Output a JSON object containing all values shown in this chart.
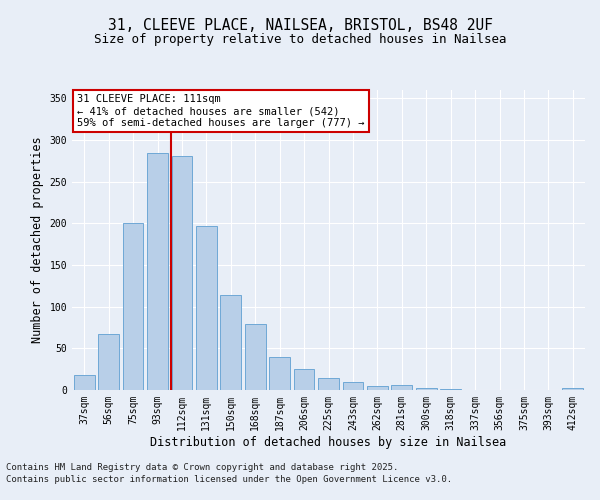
{
  "title_line1": "31, CLEEVE PLACE, NAILSEA, BRISTOL, BS48 2UF",
  "title_line2": "Size of property relative to detached houses in Nailsea",
  "xlabel": "Distribution of detached houses by size in Nailsea",
  "ylabel": "Number of detached properties",
  "categories": [
    "37sqm",
    "56sqm",
    "75sqm",
    "93sqm",
    "112sqm",
    "131sqm",
    "150sqm",
    "168sqm",
    "187sqm",
    "206sqm",
    "225sqm",
    "243sqm",
    "262sqm",
    "281sqm",
    "300sqm",
    "318sqm",
    "337sqm",
    "356sqm",
    "375sqm",
    "393sqm",
    "412sqm"
  ],
  "values": [
    18,
    67,
    200,
    284,
    281,
    197,
    114,
    79,
    40,
    25,
    15,
    10,
    5,
    6,
    3,
    1,
    0,
    0,
    0,
    0,
    2
  ],
  "bar_color": "#b8cfe8",
  "bar_edge_color": "#6fa8d6",
  "ylim": [
    0,
    360
  ],
  "yticks": [
    0,
    50,
    100,
    150,
    200,
    250,
    300,
    350
  ],
  "property_line_index": 4,
  "annotation_text": "31 CLEEVE PLACE: 111sqm\n← 41% of detached houses are smaller (542)\n59% of semi-detached houses are larger (777) →",
  "annotation_box_color": "#ffffff",
  "annotation_border_color": "#cc0000",
  "footer_line1": "Contains HM Land Registry data © Crown copyright and database right 2025.",
  "footer_line2": "Contains public sector information licensed under the Open Government Licence v3.0.",
  "bg_color": "#e8eef7",
  "plot_bg_color": "#e8eef7",
  "grid_color": "#ffffff",
  "title_fontsize": 10.5,
  "subtitle_fontsize": 9,
  "axis_label_fontsize": 8.5,
  "tick_fontsize": 7,
  "footer_fontsize": 6.5,
  "annotation_fontsize": 7.5
}
